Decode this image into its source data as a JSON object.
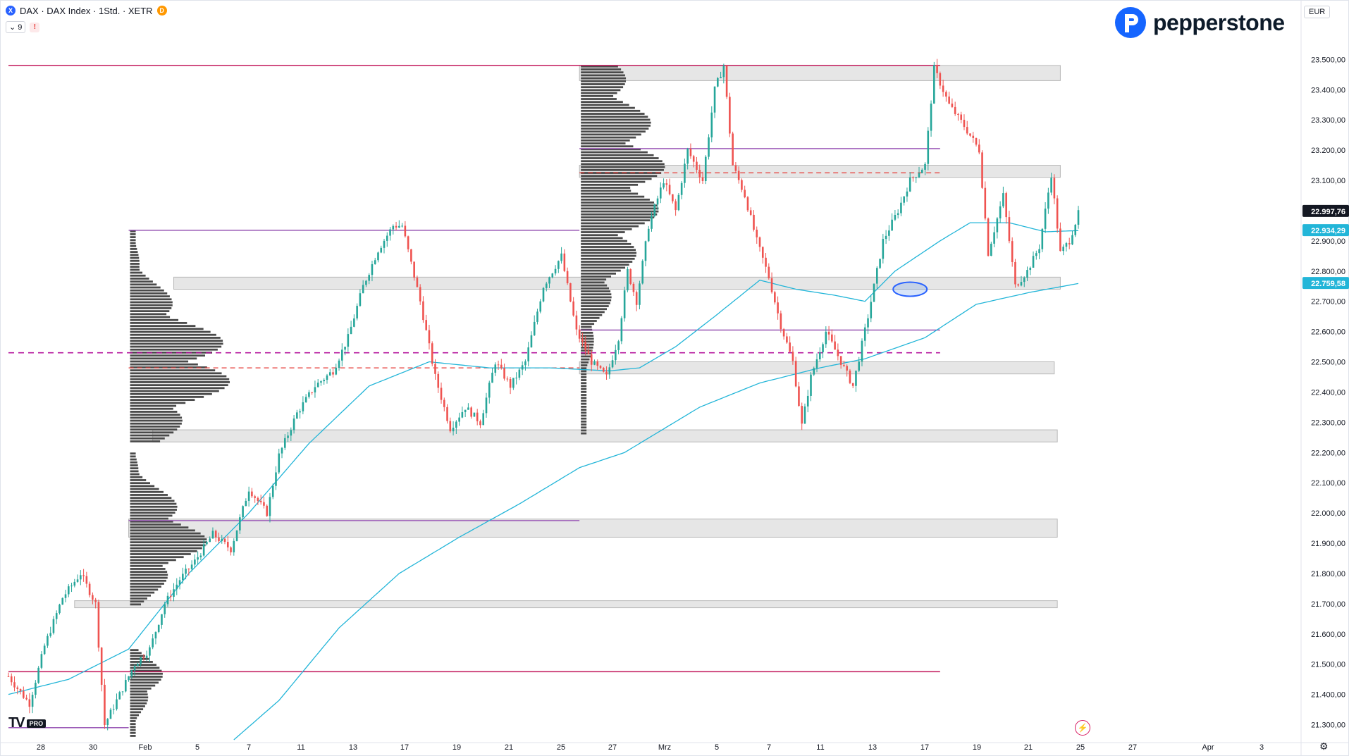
{
  "header": {
    "title": "DAX · DAX Index · 1Std. · XETR",
    "session_badge": "D",
    "indicator_count": "9",
    "alert_badge": "!",
    "currency": "EUR",
    "symbol_icon": "X"
  },
  "branding": {
    "logo_text": "pepperstone",
    "tv_mark": "TV",
    "tv_badge": "PRO",
    "brand_color": "#1565ff"
  },
  "icons": {
    "logo": "pepperstone-p-icon",
    "bolt": "lightning-icon",
    "settings": "gear-icon"
  },
  "price_labels": {
    "last": "22.997,76",
    "ma_fast": "22.934,29",
    "ma_slow": "22.759,58"
  },
  "colors": {
    "up": "#26a69a",
    "down": "#ef5350",
    "ma": "#22b5d8",
    "level": "#c2185b",
    "purple": "#8e44ad",
    "zone": "#e6e6e6",
    "profile": "#4a4a4a"
  },
  "chart_data": {
    "type": "candlestick",
    "title": "DAX · DAX Index · 1Std. · XETR",
    "y_range": [
      21250,
      23580
    ],
    "y_ticks": [
      "23.500,00",
      "23.400,00",
      "23.300,00",
      "23.200,00",
      "23.100,00",
      "23.000,00",
      "22.900,00",
      "22.800,00",
      "22.700,00",
      "22.600,00",
      "22.500,00",
      "22.400,00",
      "22.300,00",
      "22.200,00",
      "22.100,00",
      "22.000,00",
      "21.900,00",
      "21.800,00",
      "21.700,00",
      "21.600,00",
      "21.500,00",
      "21.400,00",
      "21.300,00"
    ],
    "x_ticks": [
      "28",
      "30",
      "Feb",
      "5",
      "7",
      "11",
      "13",
      "17",
      "19",
      "21",
      "25",
      "27",
      "Mrz",
      "5",
      "7",
      "11",
      "13",
      "17",
      "19",
      "21",
      "25",
      "27",
      "Apr",
      "3"
    ],
    "path_anchors": [
      [
        0,
        21460
      ],
      [
        3,
        21420
      ],
      [
        7,
        21370
      ],
      [
        12,
        21560
      ],
      [
        18,
        21720
      ],
      [
        24,
        21800
      ],
      [
        29,
        21700
      ],
      [
        32,
        21300
      ],
      [
        36,
        21380
      ],
      [
        42,
        21500
      ],
      [
        47,
        21550
      ],
      [
        52,
        21700
      ],
      [
        57,
        21780
      ],
      [
        62,
        21840
      ],
      [
        68,
        21930
      ],
      [
        74,
        21880
      ],
      [
        80,
        22080
      ],
      [
        86,
        22000
      ],
      [
        90,
        22190
      ],
      [
        96,
        22330
      ],
      [
        102,
        22420
      ],
      [
        108,
        22470
      ],
      [
        113,
        22580
      ],
      [
        118,
        22750
      ],
      [
        123,
        22870
      ],
      [
        128,
        22950
      ],
      [
        131,
        22950
      ],
      [
        137,
        22700
      ],
      [
        142,
        22450
      ],
      [
        147,
        22280
      ],
      [
        152,
        22350
      ],
      [
        157,
        22300
      ],
      [
        162,
        22500
      ],
      [
        167,
        22420
      ],
      [
        172,
        22500
      ],
      [
        178,
        22750
      ],
      [
        184,
        22850
      ],
      [
        189,
        22600
      ],
      [
        194,
        22500
      ],
      [
        199,
        22450
      ],
      [
        203,
        22580
      ],
      [
        206,
        22800
      ],
      [
        209,
        22700
      ],
      [
        213,
        22950
      ],
      [
        218,
        23100
      ],
      [
        222,
        23000
      ],
      [
        226,
        23200
      ],
      [
        231,
        23100
      ],
      [
        235,
        23400
      ],
      [
        238,
        23480
      ],
      [
        241,
        23150
      ],
      [
        245,
        23050
      ],
      [
        249,
        22900
      ],
      [
        253,
        22780
      ],
      [
        257,
        22620
      ],
      [
        261,
        22500
      ],
      [
        264,
        22290
      ],
      [
        267,
        22450
      ],
      [
        272,
        22600
      ],
      [
        277,
        22500
      ],
      [
        281,
        22420
      ],
      [
        286,
        22650
      ],
      [
        291,
        22900
      ],
      [
        296,
        23000
      ],
      [
        300,
        23100
      ],
      [
        305,
        23150
      ],
      [
        308,
        23470
      ],
      [
        313,
        23350
      ],
      [
        318,
        23280
      ],
      [
        323,
        23200
      ],
      [
        326,
        22860
      ],
      [
        331,
        23050
      ],
      [
        335,
        22750
      ],
      [
        339,
        22800
      ],
      [
        343,
        22880
      ],
      [
        347,
        23120
      ],
      [
        350,
        22860
      ],
      [
        353,
        22900
      ],
      [
        356,
        22990
      ]
    ],
    "ma_fast_anchors": [
      [
        0,
        21400
      ],
      [
        20,
        21450
      ],
      [
        40,
        21550
      ],
      [
        60,
        21800
      ],
      [
        80,
        22000
      ],
      [
        100,
        22230
      ],
      [
        120,
        22420
      ],
      [
        140,
        22500
      ],
      [
        160,
        22480
      ],
      [
        180,
        22480
      ],
      [
        200,
        22470
      ],
      [
        210,
        22480
      ],
      [
        222,
        22550
      ],
      [
        235,
        22650
      ],
      [
        250,
        22770
      ],
      [
        262,
        22740
      ],
      [
        275,
        22720
      ],
      [
        285,
        22700
      ],
      [
        295,
        22800
      ],
      [
        310,
        22900
      ],
      [
        320,
        22960
      ],
      [
        333,
        22960
      ],
      [
        345,
        22930
      ],
      [
        356,
        22934
      ]
    ],
    "ma_slow_anchors": [
      [
        75,
        21250
      ],
      [
        90,
        21380
      ],
      [
        110,
        21620
      ],
      [
        130,
        21800
      ],
      [
        150,
        21920
      ],
      [
        170,
        22030
      ],
      [
        190,
        22150
      ],
      [
        205,
        22200
      ],
      [
        215,
        22260
      ],
      [
        230,
        22350
      ],
      [
        250,
        22430
      ],
      [
        270,
        22480
      ],
      [
        285,
        22510
      ],
      [
        305,
        22580
      ],
      [
        322,
        22690
      ],
      [
        340,
        22730
      ],
      [
        356,
        22759
      ]
    ],
    "h_levels": [
      {
        "value": 23480,
        "kind": "magenta-solid",
        "from": 0,
        "to": 310
      },
      {
        "value": 21475,
        "kind": "magenta-solid",
        "from": 0,
        "to": 310
      },
      {
        "value": 23205,
        "kind": "purple-solid",
        "from": 190,
        "to": 310
      },
      {
        "value": 22935,
        "kind": "purple-solid",
        "from": 40,
        "to": 190
      },
      {
        "value": 22605,
        "kind": "purple-solid",
        "from": 190,
        "to": 310
      },
      {
        "value": 21975,
        "kind": "purple-solid",
        "from": 40,
        "to": 190
      },
      {
        "value": 21290,
        "kind": "purple-solid",
        "from": 0,
        "to": 40
      },
      {
        "value": 22530,
        "kind": "magenta-dashed",
        "from": 0,
        "to": 310
      },
      {
        "value": 23125,
        "kind": "red-dashed",
        "from": 190,
        "to": 310
      },
      {
        "value": 22480,
        "kind": "red-dashed",
        "from": 40,
        "to": 190
      }
    ],
    "zones": [
      {
        "from_value": 23430,
        "to_value": 23480,
        "x_from": 190,
        "x_to": 350
      },
      {
        "from_value": 23110,
        "to_value": 23150,
        "x_from": 190,
        "x_to": 350
      },
      {
        "from_value": 22740,
        "to_value": 22780,
        "x_from": 55,
        "x_to": 350
      },
      {
        "from_value": 22460,
        "to_value": 22500,
        "x_from": 190,
        "x_to": 348
      },
      {
        "from_value": 22235,
        "to_value": 22275,
        "x_from": 48,
        "x_to": 349
      },
      {
        "from_value": 21920,
        "to_value": 21980,
        "x_from": 40,
        "x_to": 349
      },
      {
        "from_value": 21690,
        "to_value": 21710,
        "x_from": 22,
        "x_to": 349
      }
    ],
    "volume_profiles": [
      {
        "x_at": 40,
        "top": 22935,
        "bottom": 22240,
        "poc": 22490,
        "max_width": 150
      },
      {
        "x_at": 40,
        "top": 22200,
        "bottom": 21700,
        "poc": 21920,
        "max_width": 110
      },
      {
        "x_at": 40,
        "top": 21550,
        "bottom": 21260,
        "poc": 21450,
        "max_width": 50
      },
      {
        "x_at": 190,
        "top": 23480,
        "bottom": 22260,
        "poc": 23120,
        "max_width": 120
      }
    ],
    "ellipse_marker": {
      "x_at": 300,
      "value": 22740
    },
    "grid": false
  }
}
